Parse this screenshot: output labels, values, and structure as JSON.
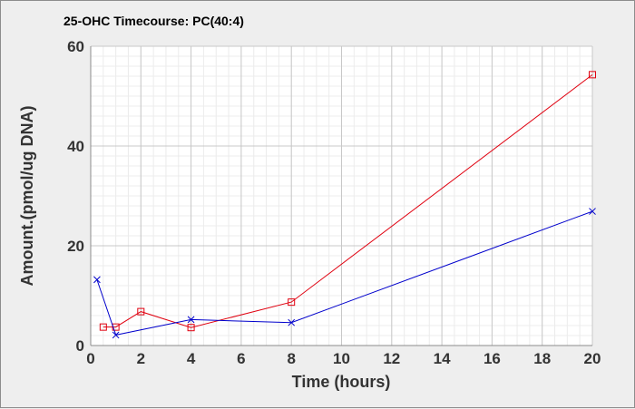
{
  "chart_data": {
    "type": "line",
    "title": "25-OHC Timecourse: PC(40:4)",
    "xlabel": "Time (hours)",
    "ylabel": "Amount.(pmol/ug DNA)",
    "xlim": [
      0,
      20
    ],
    "ylim": [
      0,
      60
    ],
    "xticks": [
      0,
      2,
      4,
      6,
      8,
      10,
      12,
      14,
      16,
      18,
      20
    ],
    "yticks": [
      0,
      20,
      40,
      60
    ],
    "grid": true,
    "series": [
      {
        "color": "#e0000f",
        "marker": "square",
        "x": [
          0.5,
          1,
          2,
          4,
          8,
          20
        ],
        "y": [
          3.7,
          3.7,
          6.8,
          3.6,
          8.7,
          54.3
        ]
      },
      {
        "color": "#0000cc",
        "marker": "x",
        "x": [
          0.25,
          1,
          4,
          8,
          20
        ],
        "y": [
          13.2,
          2.1,
          5.2,
          4.6,
          26.9
        ]
      }
    ]
  }
}
